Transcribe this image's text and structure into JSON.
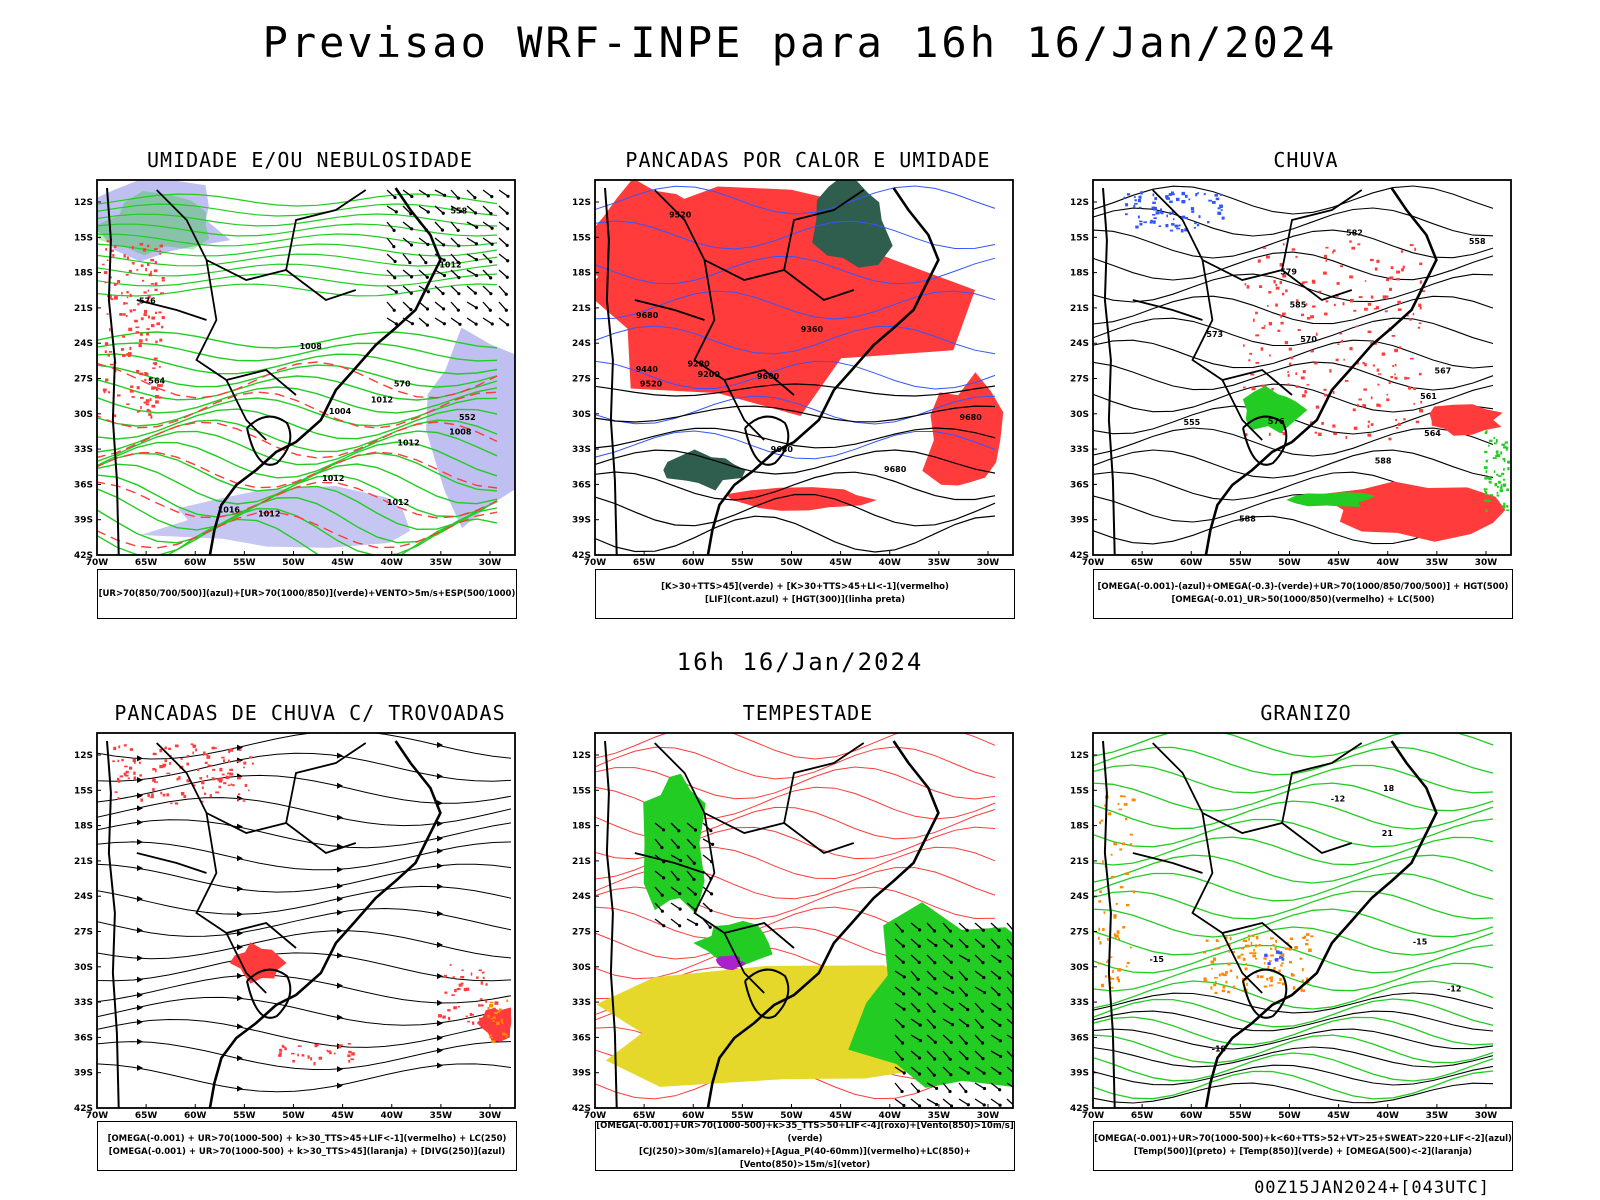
{
  "header": {
    "title": "Previsao WRF-INPE  para 16h 16/Jan/2024",
    "mid_label": "16h 16/Jan/2024",
    "footer": "00Z15JAN2024+[043UTC]"
  },
  "axes": {
    "lat_labels": [
      "12S",
      "15S",
      "18S",
      "21S",
      "24S",
      "27S",
      "30S",
      "33S",
      "36S",
      "39S",
      "42S"
    ],
    "lon_labels": [
      "70W",
      "65W",
      "60W",
      "55W",
      "50W",
      "45W",
      "40W",
      "35W",
      "30W"
    ]
  },
  "colors": {
    "green": "#22cc22",
    "red": "#ff3b3b",
    "lavender": "#b8b8f0",
    "yellow": "#e6d82a",
    "darkgreen": "#2f5e4e",
    "blue": "#3355ff",
    "orange": "#ff8800"
  },
  "panels": [
    {
      "title": "UMIDADE E/OU NEBULOSIDADE",
      "caption": [
        "[UR>70(850/700/500)](azul)+[UR>70(1000/850)](verde)+VENTO>5m/s+ESP(500/1000)"
      ],
      "contour_labels": [
        "1012",
        "1012",
        "1016",
        "1008",
        "1004",
        "1012",
        "1008",
        "1012",
        "1012",
        "576",
        "570",
        "564",
        "558",
        "552",
        "1012"
      ]
    },
    {
      "title": "PANCADAS POR CALOR E UMIDADE",
      "caption": [
        "[K>30+TTS>45](verde) + [K>30+TTS>45+LI<-1](vermelho)",
        "[LIF](cont.azul) + [HGT(300)](linha preta)"
      ],
      "contour_labels": [
        "9680",
        "9680",
        "9680",
        "9680",
        "9600",
        "9520",
        "9440",
        "9360",
        "9280",
        "9200",
        "9520"
      ]
    },
    {
      "title": "CHUVA",
      "caption": [
        "[OMEGA(-0.001)-(azul)+OMEGA(-0.3)-(verde)+UR>70(1000/850/700/500)] + HGT(500)",
        "[OMEGA(-0.01)_UR>50(1000/850)(vermelho) + LC(500)"
      ],
      "contour_labels": [
        "588",
        "588",
        "585",
        "582",
        "579",
        "576",
        "573",
        "570",
        "567",
        "564",
        "561",
        "558",
        "555"
      ]
    },
    {
      "title": "PANCADAS DE CHUVA C/ TROVOADAS",
      "caption": [
        "[OMEGA(-0.001) + UR>70(1000-500) + k>30_TTS>45+LIF<-1](vermelho) + LC(250)",
        "[OMEGA(-0.001) + UR>70(1000-500) + k>30_TTS>45](laranja) + [DIVG(250)](azul)"
      ],
      "contour_labels": []
    },
    {
      "title": "TEMPESTADE",
      "caption": [
        "[OMEGA(-0.001)+UR>70(1000-500)+k>35_TTS>50+LIF<-4](roxo)+[Vento(850)>10m/s](verde)",
        "[CJ(250)>30m/s](amarelo)+[Agua_P(40-60mm)](vermelho)+LC(850)+[Vento(850)>15m/s](vetor)"
      ],
      "contour_labels": []
    },
    {
      "title": "GRANIZO",
      "caption": [
        "[OMEGA(-0.001)+UR>70(1000-500)+k<60+TTS>52+VT>25+SWEAT>220+LIF<-2](azul)",
        "[Temp(500)](preto) + [Temp(850)](verde) + [OMEGA(500)<-2](laranja)"
      ],
      "contour_labels": [
        "-12",
        "-12",
        "-15",
        "-15",
        "-18",
        "21",
        "18"
      ]
    }
  ]
}
